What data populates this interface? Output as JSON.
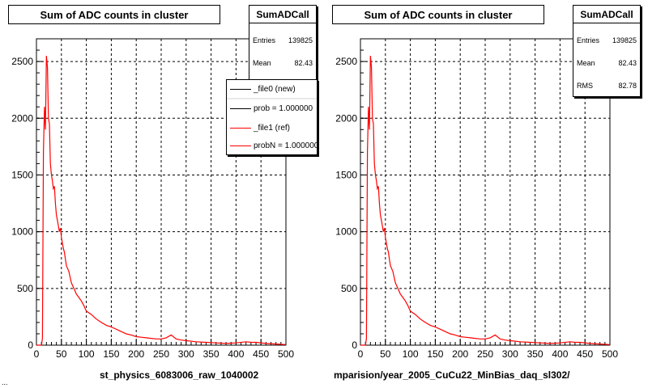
{
  "chart_data": [
    {
      "type": "line",
      "title": "Sum of ADC counts in cluster",
      "xlabel": "st_physics_6083006_raw_1040002",
      "ylabel": "",
      "xlim": [
        0,
        500
      ],
      "ylim": [
        0,
        2700
      ],
      "xticks": [
        "0",
        "50",
        "100",
        "150",
        "200",
        "250",
        "300",
        "350",
        "400",
        "450",
        "500"
      ],
      "yticks": [
        "0",
        "500",
        "1000",
        "1500",
        "2000",
        "2500"
      ],
      "grid": true,
      "stats": {
        "title": "SumADCall",
        "rows": [
          {
            "label": "Entries",
            "value": "139825"
          },
          {
            "label": "Mean",
            "value": "82.43"
          }
        ]
      },
      "legend": {
        "placement": "top-right",
        "entries": [
          {
            "label": "_file0 (new)",
            "color": "#000000"
          },
          {
            "label": "prob = 1.000000",
            "color": "#000000"
          },
          {
            "label": "_file1 (ref)",
            "color": "#ff0000"
          },
          {
            "label": "probN = 1.000000",
            "color": "#ff0000"
          }
        ]
      },
      "series": [
        {
          "name": "_file1 (ref)",
          "color": "#ff0000",
          "x": [
            0,
            10,
            12,
            14,
            16,
            18,
            20,
            22,
            24,
            26,
            28,
            30,
            32,
            34,
            36,
            38,
            40,
            42,
            44,
            46,
            48,
            50,
            52,
            54,
            56,
            58,
            60,
            65,
            70,
            75,
            80,
            85,
            90,
            95,
            100,
            110,
            120,
            130,
            140,
            150,
            160,
            170,
            180,
            190,
            200,
            210,
            220,
            230,
            240,
            250,
            260,
            270,
            280,
            290,
            300,
            320,
            340,
            360,
            380,
            400,
            420,
            430,
            440,
            460,
            480,
            500
          ],
          "values": [
            0,
            0,
            60,
            1700,
            2100,
            1900,
            2550,
            2450,
            2000,
            1950,
            1600,
            1500,
            1450,
            1380,
            1400,
            1250,
            1150,
            1100,
            1050,
            1000,
            1030,
            950,
            900,
            850,
            820,
            760,
            700,
            650,
            550,
            500,
            450,
            420,
            390,
            350,
            300,
            270,
            230,
            200,
            175,
            160,
            140,
            120,
            100,
            90,
            75,
            70,
            65,
            60,
            55,
            55,
            65,
            90,
            55,
            45,
            40,
            30,
            25,
            20,
            15,
            20,
            30,
            25,
            25,
            15,
            10,
            5
          ]
        }
      ]
    },
    {
      "type": "line",
      "title": "Sum of ADC counts in cluster",
      "xlabel": "mparision/year_2005_CuCu22_MinBias_daq_sl302/",
      "ylabel": "",
      "xlim": [
        0,
        500
      ],
      "ylim": [
        0,
        2700
      ],
      "xticks": [
        "0",
        "50",
        "100",
        "150",
        "200",
        "250",
        "300",
        "350",
        "400",
        "450",
        "500"
      ],
      "yticks": [
        "0",
        "500",
        "1000",
        "1500",
        "2000",
        "2500"
      ],
      "grid": true,
      "stats": {
        "title": "SumADCall",
        "rows": [
          {
            "label": "Entries",
            "value": "139825"
          },
          {
            "label": "Mean",
            "value": "82.43"
          },
          {
            "label": "RMS",
            "value": "82.78"
          }
        ]
      },
      "series": [
        {
          "color": "#ff0000",
          "x": [
            0,
            10,
            12,
            14,
            16,
            18,
            20,
            22,
            24,
            26,
            28,
            30,
            32,
            34,
            36,
            38,
            40,
            42,
            44,
            46,
            48,
            50,
            52,
            54,
            56,
            58,
            60,
            65,
            70,
            75,
            80,
            85,
            90,
            95,
            100,
            110,
            120,
            130,
            140,
            150,
            160,
            170,
            180,
            190,
            200,
            210,
            220,
            230,
            240,
            250,
            260,
            270,
            280,
            290,
            300,
            320,
            340,
            360,
            380,
            400,
            420,
            430,
            440,
            460,
            480,
            500
          ],
          "values": [
            0,
            0,
            60,
            1700,
            2100,
            1900,
            2550,
            2450,
            2000,
            1950,
            1600,
            1500,
            1450,
            1380,
            1400,
            1250,
            1150,
            1100,
            1050,
            1000,
            1030,
            950,
            900,
            850,
            820,
            760,
            700,
            650,
            550,
            500,
            450,
            420,
            390,
            350,
            300,
            270,
            230,
            200,
            175,
            160,
            140,
            120,
            100,
            90,
            75,
            70,
            65,
            60,
            55,
            55,
            65,
            90,
            55,
            45,
            40,
            30,
            25,
            20,
            15,
            20,
            30,
            25,
            25,
            15,
            10,
            5
          ]
        }
      ]
    }
  ],
  "footer_text": "..."
}
